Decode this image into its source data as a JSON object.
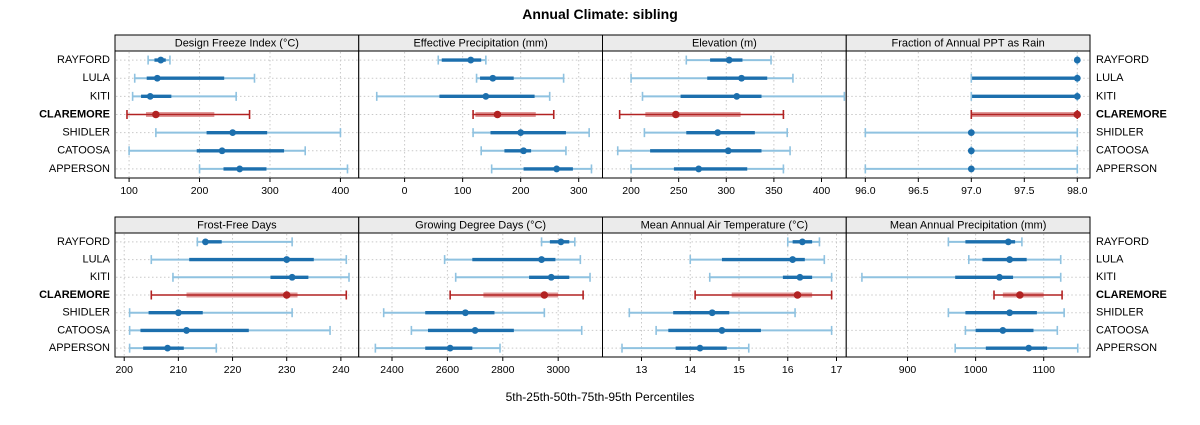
{
  "title": "Annual Climate: sibling",
  "xlabel": "5th-25th-50th-75th-95th Percentiles",
  "percentile_labels": [
    "5th",
    "25th",
    "50th",
    "75th",
    "95th"
  ],
  "stations": [
    "RAYFORD",
    "LULA",
    "KITI",
    "CLAREMORE",
    "SHIDLER",
    "CATOOSA",
    "APPERSON"
  ],
  "highlight_station": "CLAREMORE",
  "colors": {
    "series_main": "#1c6fad",
    "series_light": "#8fc2e0",
    "highlight_main": "#b22222",
    "highlight_light": "#e09999",
    "strip_bg": "#ebebeb",
    "panel_border": "#000000",
    "grid": "#c9c9c9",
    "text": "#000000"
  },
  "chart_data": {
    "type": "percentile-dotplot-trellis",
    "layout": "2 rows x 4 cols, shared station rows, grid dotted, strip headers on top of each panel",
    "whisker_encoding": "thin line = 5th-95th with end caps, thick band = 25th-75th, dot = 50th (median)",
    "panels": [
      {
        "title": "Design Freeze Index (°C)",
        "grid_row": 0,
        "grid_col": 0,
        "xlim": [
          80,
          426
        ],
        "ticks": [
          100,
          200,
          300,
          400
        ],
        "tick_labels": [
          "100",
          "200",
          "300",
          "400"
        ],
        "series": [
          {
            "station": "RAYFORD",
            "p": [
              127,
              136,
              145,
              152,
              158
            ]
          },
          {
            "station": "LULA",
            "p": [
              108,
              125,
              140,
              235,
              278
            ]
          },
          {
            "station": "KITI",
            "p": [
              105,
              117,
              130,
              160,
              252
            ]
          },
          {
            "station": "CLAREMORE",
            "p": [
              97,
              124,
              138,
              221,
              271
            ]
          },
          {
            "station": "SHIDLER",
            "p": [
              138,
              210,
              247,
              296,
              400
            ]
          },
          {
            "station": "CATOOSA",
            "p": [
              100,
              196,
              232,
              320,
              350
            ]
          },
          {
            "station": "APPERSON",
            "p": [
              200,
              234,
              257,
              295,
              410
            ]
          }
        ]
      },
      {
        "title": "Effective Precipitation (mm)",
        "grid_row": 0,
        "grid_col": 1,
        "xlim": [
          -79,
          341
        ],
        "ticks": [
          0,
          100,
          200,
          300
        ],
        "tick_labels": [
          "0",
          "100",
          "200",
          "300"
        ],
        "series": [
          {
            "station": "RAYFORD",
            "p": [
              58,
              64,
              114,
              132,
              140
            ]
          },
          {
            "station": "LULA",
            "p": [
              124,
              130,
              152,
              188,
              274
            ]
          },
          {
            "station": "KITI",
            "p": [
              -48,
              60,
              140,
              224,
              250
            ]
          },
          {
            "station": "CLAREMORE",
            "p": [
              118,
              122,
              160,
              226,
              257
            ]
          },
          {
            "station": "SHIDLER",
            "p": [
              118,
              148,
              200,
              278,
              318
            ]
          },
          {
            "station": "CATOOSA",
            "p": [
              132,
              172,
              205,
              218,
              278
            ]
          },
          {
            "station": "APPERSON",
            "p": [
              150,
              205,
              262,
              290,
              322
            ]
          }
        ]
      },
      {
        "title": "Elevation (m)",
        "grid_row": 0,
        "grid_col": 2,
        "xlim": [
          170,
          426
        ],
        "ticks": [
          200,
          250,
          300,
          350,
          400
        ],
        "tick_labels": [
          "200",
          "250",
          "300",
          "350",
          "400"
        ],
        "series": [
          {
            "station": "RAYFORD",
            "p": [
              258,
              283,
              303,
              317,
              347
            ]
          },
          {
            "station": "LULA",
            "p": [
              200,
              280,
              316,
              343,
              370
            ]
          },
          {
            "station": "KITI",
            "p": [
              212,
              252,
              311,
              337,
              424
            ]
          },
          {
            "station": "CLAREMORE",
            "p": [
              188,
              215,
              247,
              315,
              360
            ]
          },
          {
            "station": "SHIDLER",
            "p": [
              214,
              258,
              291,
              330,
              364
            ]
          },
          {
            "station": "CATOOSA",
            "p": [
              186,
              220,
              302,
              337,
              367
            ]
          },
          {
            "station": "APPERSON",
            "p": [
              200,
              245,
              271,
              322,
              360
            ]
          }
        ]
      },
      {
        "title": "Fraction of Annual PPT as Rain",
        "grid_row": 0,
        "grid_col": 3,
        "xlim": [
          95.82,
          98.12
        ],
        "ticks": [
          96,
          96.5,
          97,
          97.5,
          98
        ],
        "tick_labels": [
          "96.0",
          "96.5",
          "97.0",
          "97.5",
          "98.0"
        ],
        "series": [
          {
            "station": "RAYFORD",
            "p": [
              98,
              98,
              98,
              98,
              98
            ]
          },
          {
            "station": "LULA",
            "p": [
              97,
              97,
              98,
              98,
              98
            ]
          },
          {
            "station": "KITI",
            "p": [
              97,
              97,
              98,
              98,
              98
            ]
          },
          {
            "station": "CLAREMORE",
            "p": [
              97,
              97,
              98,
              98,
              98
            ]
          },
          {
            "station": "SHIDLER",
            "p": [
              96,
              97,
              97,
              97,
              98
            ]
          },
          {
            "station": "CATOOSA",
            "p": [
              97,
              97,
              97,
              97,
              98
            ]
          },
          {
            "station": "APPERSON",
            "p": [
              96,
              97,
              97,
              97,
              98
            ]
          }
        ]
      },
      {
        "title": "Frost-Free Days",
        "grid_row": 1,
        "grid_col": 0,
        "xlim": [
          198.3,
          243.3
        ],
        "ticks": [
          200,
          210,
          220,
          230,
          240
        ],
        "tick_labels": [
          "200",
          "210",
          "220",
          "230",
          "240"
        ],
        "series": [
          {
            "station": "RAYFORD",
            "p": [
              213.5,
              214.5,
              215,
              218,
              231
            ]
          },
          {
            "station": "LULA",
            "p": [
              205,
              212,
              230,
              235,
              241
            ]
          },
          {
            "station": "KITI",
            "p": [
              209,
              227,
              231,
              234,
              241.5
            ]
          },
          {
            "station": "CLAREMORE",
            "p": [
              205,
              211.5,
              230,
              232,
              241
            ]
          },
          {
            "station": "SHIDLER",
            "p": [
              201,
              204.5,
              210,
              214.5,
              231
            ]
          },
          {
            "station": "CATOOSA",
            "p": [
              201,
              203,
              211.5,
              223,
              238
            ]
          },
          {
            "station": "APPERSON",
            "p": [
              201,
              203.5,
              208,
              211,
              217
            ]
          }
        ]
      },
      {
        "title": "Growing Degree Days (°C)",
        "grid_row": 1,
        "grid_col": 1,
        "xlim": [
          2280,
          3160
        ],
        "ticks": [
          2400,
          2600,
          2800,
          3000
        ],
        "tick_labels": [
          "2400",
          "2600",
          "2800",
          "3000"
        ],
        "series": [
          {
            "station": "RAYFORD",
            "p": [
              2940,
              2970,
              3010,
              3040,
              3060
            ]
          },
          {
            "station": "LULA",
            "p": [
              2590,
              2690,
              2940,
              2990,
              3080
            ]
          },
          {
            "station": "KITI",
            "p": [
              2630,
              2895,
              2975,
              3040,
              3115
            ]
          },
          {
            "station": "CLAREMORE",
            "p": [
              2610,
              2730,
              2950,
              3000,
              3090
            ]
          },
          {
            "station": "SHIDLER",
            "p": [
              2370,
              2520,
              2665,
              2770,
              2950
            ]
          },
          {
            "station": "CATOOSA",
            "p": [
              2470,
              2530,
              2700,
              2840,
              3085
            ]
          },
          {
            "station": "APPERSON",
            "p": [
              2340,
              2520,
              2610,
              2690,
              2790
            ]
          }
        ]
      },
      {
        "title": "Mean Annual Air Temperature (°C)",
        "grid_row": 1,
        "grid_col": 2,
        "xlim": [
          12.2,
          17.2
        ],
        "ticks": [
          13,
          14,
          15,
          16,
          17
        ],
        "tick_labels": [
          "13",
          "14",
          "15",
          "16",
          "17"
        ],
        "series": [
          {
            "station": "RAYFORD",
            "p": [
              16.0,
              16.1,
              16.3,
              16.5,
              16.65
            ]
          },
          {
            "station": "LULA",
            "p": [
              14.0,
              14.65,
              16.1,
              16.35,
              16.75
            ]
          },
          {
            "station": "KITI",
            "p": [
              14.4,
              15.9,
              16.25,
              16.5,
              16.9
            ]
          },
          {
            "station": "CLAREMORE",
            "p": [
              14.1,
              14.85,
              16.2,
              16.5,
              16.9
            ]
          },
          {
            "station": "SHIDLER",
            "p": [
              12.75,
              13.65,
              14.45,
              14.8,
              16.15
            ]
          },
          {
            "station": "CATOOSA",
            "p": [
              13.3,
              13.55,
              14.65,
              15.45,
              16.9
            ]
          },
          {
            "station": "APPERSON",
            "p": [
              12.6,
              13.7,
              14.2,
              14.75,
              15.2
            ]
          }
        ]
      },
      {
        "title": "Mean Annual Precipitation (mm)",
        "grid_row": 1,
        "grid_col": 3,
        "xlim": [
          810,
          1168
        ],
        "ticks": [
          900,
          1000,
          1100
        ],
        "tick_labels": [
          "900",
          "1000",
          "1100"
        ],
        "series": [
          {
            "station": "RAYFORD",
            "p": [
              960,
              985,
              1048,
              1058,
              1068
            ]
          },
          {
            "station": "LULA",
            "p": [
              990,
              1010,
              1050,
              1075,
              1125
            ]
          },
          {
            "station": "KITI",
            "p": [
              833,
              970,
              1035,
              1055,
              1125
            ]
          },
          {
            "station": "CLAREMORE",
            "p": [
              1027,
              1040,
              1065,
              1100,
              1127
            ]
          },
          {
            "station": "SHIDLER",
            "p": [
              960,
              985,
              1050,
              1090,
              1130
            ]
          },
          {
            "station": "CATOOSA",
            "p": [
              985,
              1000,
              1040,
              1085,
              1120
            ]
          },
          {
            "station": "APPERSON",
            "p": [
              970,
              1015,
              1078,
              1105,
              1150
            ]
          }
        ]
      }
    ]
  }
}
